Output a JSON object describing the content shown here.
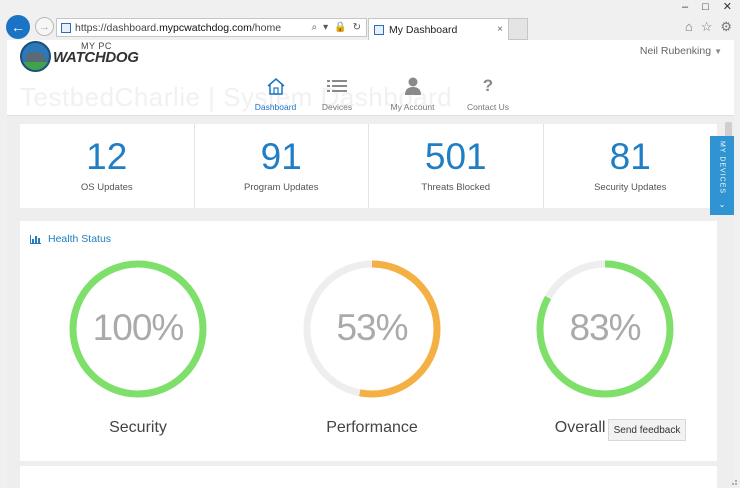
{
  "browser": {
    "url_prefix": "https://dashboard.",
    "url_domain": "mypcwatchdog.com",
    "url_path": "/home",
    "tab_title": "My Dashboard",
    "address_controls": [
      "⌕",
      "▾",
      "🔒",
      "↻"
    ],
    "tab_close": "×",
    "window_controls": [
      "–",
      "□",
      "✕"
    ],
    "toolbar_icons": [
      "⌂",
      "☆",
      "⚙"
    ]
  },
  "header": {
    "logo_small": "MY PC",
    "logo_big": "WATCHDOG",
    "user_name": "Neil Rubenking",
    "ghost_title": "TestbedCharlie | System Dashboard"
  },
  "nav": {
    "items": [
      {
        "label": "Dashboard",
        "icon": "home-icon",
        "active": true
      },
      {
        "label": "Devices",
        "icon": "list-icon",
        "active": false
      },
      {
        "label": "My Account",
        "icon": "user-icon",
        "active": false
      },
      {
        "label": "Contact Us",
        "icon": "question-icon",
        "active": false
      }
    ]
  },
  "stats": [
    {
      "value": "12",
      "label": "OS Updates"
    },
    {
      "value": "91",
      "label": "Program Updates"
    },
    {
      "value": "501",
      "label": "Threats Blocked"
    },
    {
      "value": "81",
      "label": "Security Updates"
    }
  ],
  "side_tab": {
    "label": "MY DEVICES",
    "chevron": "⌄"
  },
  "health": {
    "title": "Health Status",
    "gauges": [
      {
        "label": "Security",
        "percent": 100,
        "text": "100%",
        "color": "#7ee06a"
      },
      {
        "label": "Performance",
        "percent": 53,
        "text": "53%",
        "color": "#f5b043"
      },
      {
        "label": "Overall Status",
        "percent": 83,
        "text": "83%",
        "color": "#7ee06a"
      }
    ],
    "track_color": "#eeeeee"
  },
  "feedback": {
    "label": "Send feedback"
  }
}
